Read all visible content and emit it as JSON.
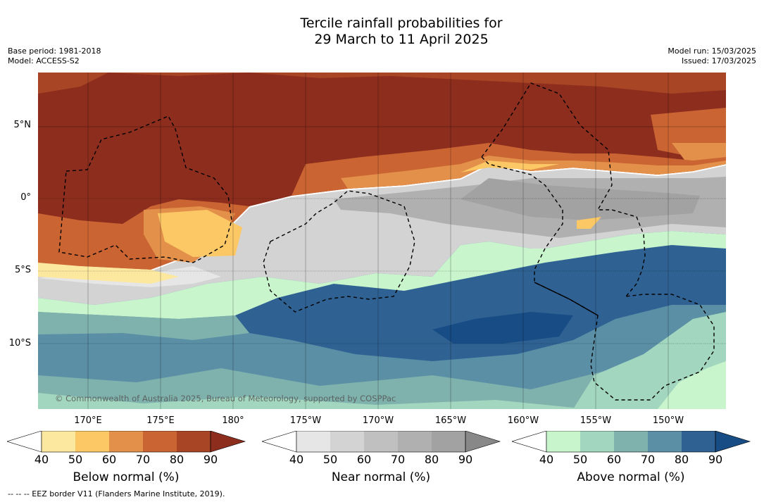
{
  "title_line1": "Tercile rainfall probabilities for",
  "title_line2": "29 March to 11 April 2025",
  "base_period": "Base period: 1981-2018",
  "model": "Model: ACCESS-S2",
  "model_run": "Model run: 15/03/2025",
  "issued": "Issued: 17/03/2025",
  "lat_labels": [
    "5°N",
    "0°",
    "5°S",
    "10°S"
  ],
  "lon_labels": [
    "170°E",
    "175°E",
    "180°",
    "175°W",
    "170°W",
    "165°W",
    "160°W",
    "155°W",
    "150°W"
  ],
  "copyright": "© Commonwealth of Australia 2025, Bureau of Meteorology, supported by COSPPac",
  "colorbars": [
    {
      "title": "Below normal (%)",
      "ticks": [
        "40",
        "50",
        "60",
        "70",
        "80",
        "90"
      ],
      "colors": [
        "#ffffff",
        "#fde8a0",
        "#fbc865",
        "#e3914a",
        "#cb6433",
        "#a84525",
        "#8c2d1e"
      ]
    },
    {
      "title": "Near normal (%)",
      "ticks": [
        "40",
        "50",
        "60",
        "70",
        "80",
        "90"
      ],
      "colors": [
        "#ffffff",
        "#e6e6e6",
        "#d3d3d3",
        "#c0c0c0",
        "#b0b0b0",
        "#a2a2a2",
        "#888888"
      ]
    },
    {
      "title": "Above normal (%)",
      "ticks": [
        "40",
        "50",
        "60",
        "70",
        "80",
        "90"
      ],
      "colors": [
        "#ffffff",
        "#c8f5cc",
        "#a2d6bf",
        "#7fb2ad",
        "#5a8fa6",
        "#2f6293",
        "#184c84"
      ]
    }
  ],
  "footer": "--  --  -- EEZ border V11 (Flanders Marine Institute, 2019)."
}
